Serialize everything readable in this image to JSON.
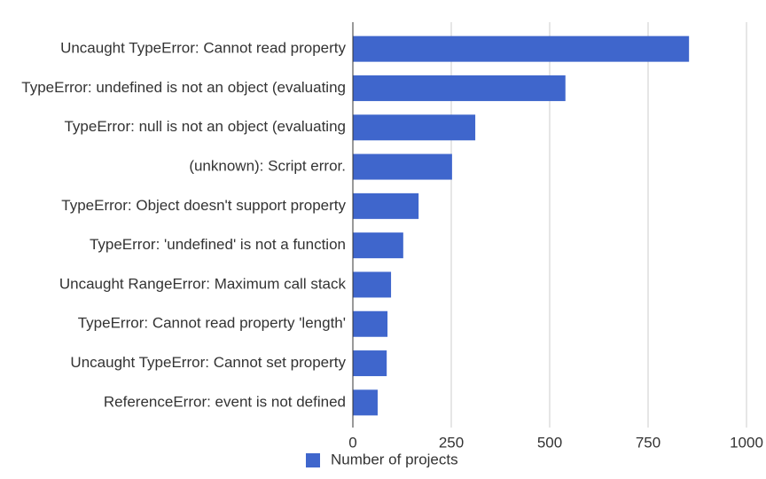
{
  "chart_data": {
    "type": "bar",
    "categories": [
      "Uncaught TypeError: Cannot read property",
      "TypeError: undefined is not an object (evaluating",
      "TypeError: null is not an object (evaluating",
      "(unknown): Script error.",
      "TypeError: Object doesn't support property",
      "TypeError: 'undefined' is not a function",
      "Uncaught RangeError: Maximum call stack",
      "TypeError: Cannot read property 'length'",
      "Uncaught TypeError: Cannot set property",
      "ReferenceError: event is not defined"
    ],
    "series": [
      {
        "name": "Number of projects",
        "color": "#3f66cc",
        "values": [
          854,
          540,
          311,
          252,
          167,
          128,
          97,
          88,
          86,
          63
        ]
      }
    ],
    "xlim": [
      0,
      1000
    ],
    "xticks": [
      0,
      250,
      500,
      750,
      1000
    ],
    "grid": true,
    "legend": "bottom"
  }
}
